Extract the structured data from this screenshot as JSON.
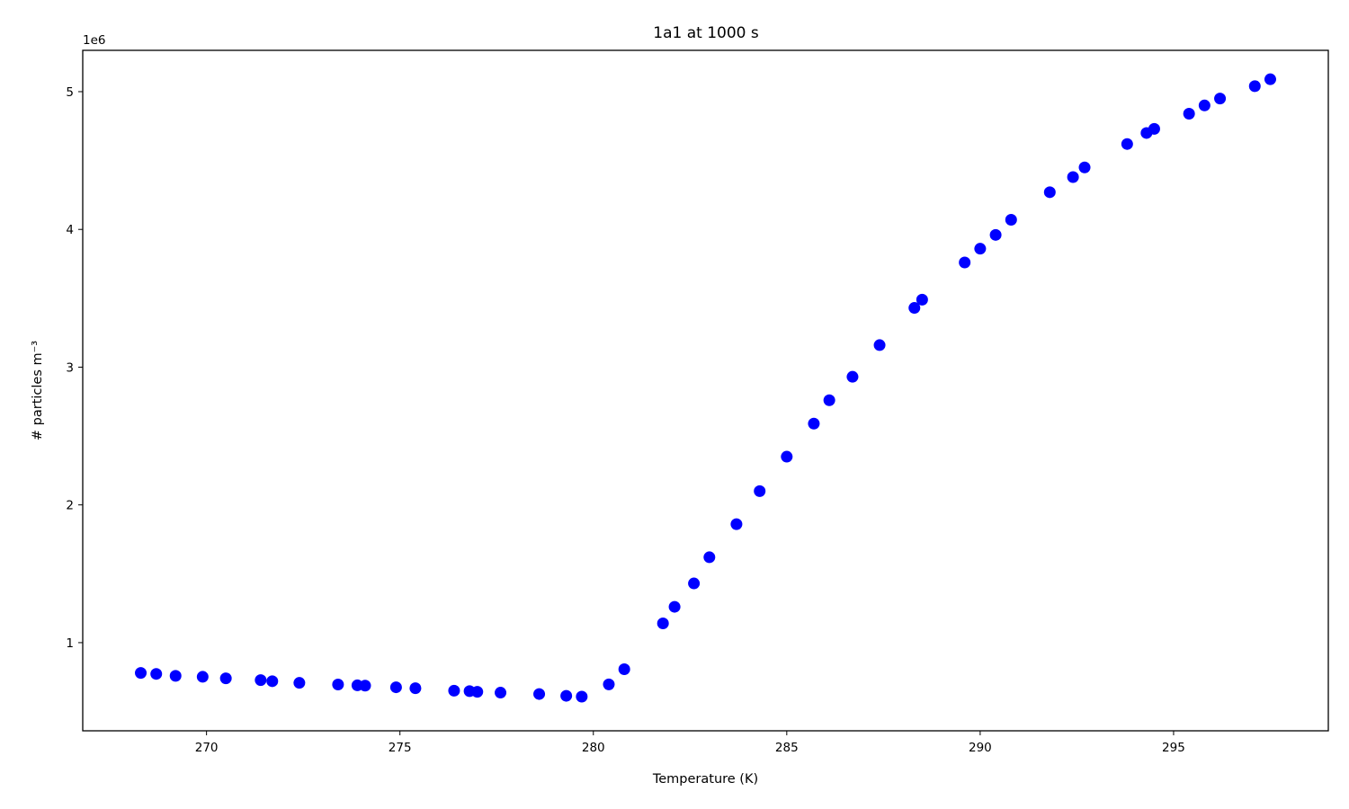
{
  "chart_data": {
    "type": "scatter",
    "title": "1a1 at 1000 s",
    "xlabel": "Temperature (K)",
    "ylabel": "# particles m⁻³",
    "y_offset_label": "1e6",
    "y_scale_factor": 1000000,
    "xlim": [
      266.8,
      299.0
    ],
    "ylim": [
      360000,
      5300000
    ],
    "x_ticks": [
      270,
      275,
      280,
      285,
      290,
      295
    ],
    "y_ticks": [
      1000000,
      2000000,
      3000000,
      4000000,
      5000000
    ],
    "y_tick_labels": [
      "1",
      "2",
      "3",
      "4",
      "5"
    ],
    "grid": false,
    "legend": "none",
    "marker_color": "#0000ff",
    "series": [
      {
        "x": [
          268.3,
          268.7,
          269.2,
          269.9,
          270.5,
          271.4,
          271.7,
          272.4,
          273.4,
          273.9,
          274.1,
          274.9,
          275.4,
          276.4,
          276.8,
          277.0,
          277.6,
          278.6,
          279.3,
          279.7,
          280.4,
          280.8,
          281.8,
          282.1,
          282.6,
          283.0,
          283.7,
          284.3,
          285.0,
          285.7,
          286.1,
          286.7,
          287.4,
          288.3,
          288.5,
          289.6,
          290.0,
          290.4,
          290.8,
          291.8,
          292.4,
          292.7,
          293.8,
          294.3,
          294.5,
          295.4,
          295.8,
          296.2,
          297.1,
          297.5
        ],
        "y": [
          780000,
          773000,
          759000,
          752000,
          741000,
          728000,
          720000,
          708000,
          696000,
          690000,
          688000,
          676000,
          669000,
          651000,
          648000,
          643000,
          637000,
          627000,
          614000,
          608000,
          697000,
          807000,
          1140000,
          1260000,
          1430000,
          1620000,
          1860000,
          2100000,
          2350000,
          2590000,
          2760000,
          2930000,
          3160000,
          3430000,
          3490000,
          3760000,
          3860000,
          3960000,
          4070000,
          4270000,
          4380000,
          4450000,
          4620000,
          4700000,
          4730000,
          4840000,
          4900000,
          4950000,
          5040000,
          5090000
        ]
      }
    ]
  }
}
